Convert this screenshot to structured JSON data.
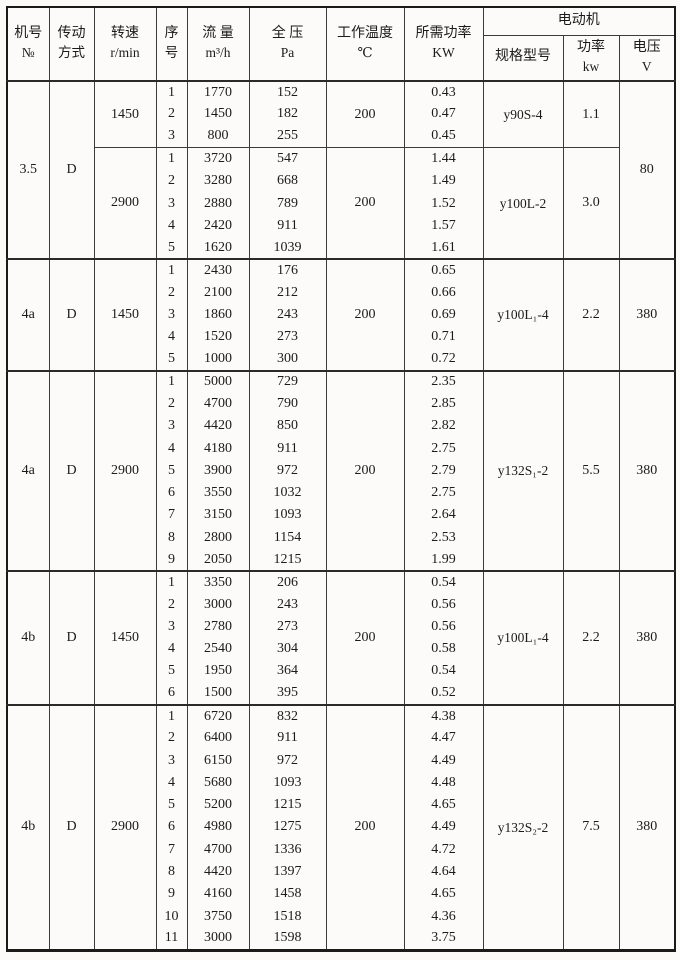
{
  "header": {
    "machine_no": {
      "l1": "机号",
      "l2": "№"
    },
    "drive_mode": {
      "l1": "传动",
      "l2": "方式"
    },
    "speed": {
      "l1": "转速",
      "l2": "r/min"
    },
    "seq": {
      "l1": "序",
      "l2": "号"
    },
    "flow": {
      "l1": "流 量",
      "l2": "m³/h"
    },
    "pressure": {
      "l1": "全 压",
      "l2": "Pa"
    },
    "work_temp": {
      "l1": "工作温度",
      "l2": "℃"
    },
    "required_power": {
      "l1": "所需功率",
      "l2": "KW"
    },
    "motor_group": "电动机",
    "motor_model": "规格型号",
    "motor_power": {
      "l1": "功率",
      "l2": "kw"
    },
    "voltage": {
      "l1": "电压",
      "l2": "V"
    }
  },
  "colors": {
    "paper": "#fbfaf7",
    "ink": "#1b1b1b",
    "grid": "#3b3b3b"
  },
  "blocks": [
    {
      "machine_no": "3.5",
      "drive_mode": "D",
      "voltage": "80",
      "sections": [
        {
          "speed": "1450",
          "temp": "200",
          "motor_model": "y90S-4",
          "motor_power": "1.1",
          "rows": [
            [
              "1",
              "1770",
              "152",
              "0.43"
            ],
            [
              "2",
              "1450",
              "182",
              "0.47"
            ],
            [
              "3",
              "800",
              "255",
              "0.45"
            ]
          ]
        },
        {
          "speed": "2900",
          "temp": "200",
          "motor_model": "y100L-2",
          "motor_power": "3.0",
          "rows": [
            [
              "1",
              "3720",
              "547",
              "1.44"
            ],
            [
              "2",
              "3280",
              "668",
              "1.49"
            ],
            [
              "3",
              "2880",
              "789",
              "1.52"
            ],
            [
              "4",
              "2420",
              "911",
              "1.57"
            ],
            [
              "5",
              "1620",
              "1039",
              "1.61"
            ]
          ]
        }
      ]
    },
    {
      "machine_no": "4a",
      "drive_mode": "D",
      "voltage": "380",
      "sections": [
        {
          "speed": "1450",
          "temp": "200",
          "motor_model": "y100L₁-4",
          "motor_power": "2.2",
          "rows": [
            [
              "1",
              "2430",
              "176",
              "0.65"
            ],
            [
              "2",
              "2100",
              "212",
              "0.66"
            ],
            [
              "3",
              "1860",
              "243",
              "0.69"
            ],
            [
              "4",
              "1520",
              "273",
              "0.71"
            ],
            [
              "5",
              "1000",
              "300",
              "0.72"
            ]
          ]
        }
      ]
    },
    {
      "machine_no": "4a",
      "drive_mode": "D",
      "voltage": "380",
      "sections": [
        {
          "speed": "2900",
          "temp": "200",
          "motor_model": "y132S₁-2",
          "motor_power": "5.5",
          "rows": [
            [
              "1",
              "5000",
              "729",
              "2.35"
            ],
            [
              "2",
              "4700",
              "790",
              "2.85"
            ],
            [
              "3",
              "4420",
              "850",
              "2.82"
            ],
            [
              "4",
              "4180",
              "911",
              "2.75"
            ],
            [
              "5",
              "3900",
              "972",
              "2.79"
            ],
            [
              "6",
              "3550",
              "1032",
              "2.75"
            ],
            [
              "7",
              "3150",
              "1093",
              "2.64"
            ],
            [
              "8",
              "2800",
              "1154",
              "2.53"
            ],
            [
              "9",
              "2050",
              "1215",
              "1.99"
            ]
          ]
        }
      ]
    },
    {
      "machine_no": "4b",
      "drive_mode": "D",
      "voltage": "380",
      "sections": [
        {
          "speed": "1450",
          "temp": "200",
          "motor_model": "y100L₁-4",
          "motor_power": "2.2",
          "rows": [
            [
              "1",
              "3350",
              "206",
              "0.54"
            ],
            [
              "2",
              "3000",
              "243",
              "0.56"
            ],
            [
              "3",
              "2780",
              "273",
              "0.56"
            ],
            [
              "4",
              "2540",
              "304",
              "0.58"
            ],
            [
              "5",
              "1950",
              "364",
              "0.54"
            ],
            [
              "6",
              "1500",
              "395",
              "0.52"
            ]
          ]
        }
      ]
    },
    {
      "machine_no": "4b",
      "drive_mode": "D",
      "voltage": "380",
      "sections": [
        {
          "speed": "2900",
          "temp": "200",
          "motor_model": "y132S₂-2",
          "motor_power": "7.5",
          "rows": [
            [
              "1",
              "6720",
              "832",
              "4.38"
            ],
            [
              "2",
              "6400",
              "911",
              "4.47"
            ],
            [
              "3",
              "6150",
              "972",
              "4.49"
            ],
            [
              "4",
              "5680",
              "1093",
              "4.48"
            ],
            [
              "5",
              "5200",
              "1215",
              "4.65"
            ],
            [
              "6",
              "4980",
              "1275",
              "4.49"
            ],
            [
              "7",
              "4700",
              "1336",
              "4.72"
            ],
            [
              "8",
              "4420",
              "1397",
              "4.64"
            ],
            [
              "9",
              "4160",
              "1458",
              "4.65"
            ],
            [
              "10",
              "3750",
              "1518",
              "4.36"
            ],
            [
              "11",
              "3000",
              "1598",
              "3.75"
            ]
          ]
        }
      ]
    }
  ]
}
